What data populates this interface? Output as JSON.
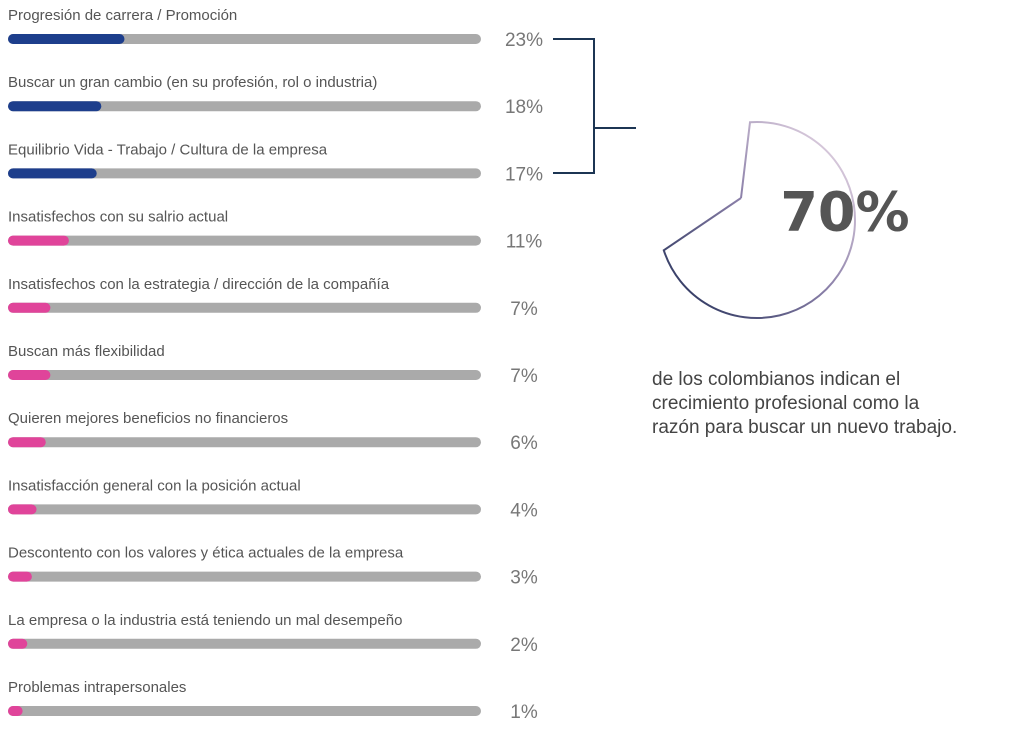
{
  "chart_data": [
    {
      "type": "bar",
      "categories": [
        "Progresión de carrera / Promoción",
        "Buscar un gran cambio (en su profesión, rol o industria)",
        "Equilibrio Vida - Trabajo  / Cultura de la empresa",
        "Insatisfechos con su salrio actual",
        "Insatisfechos con la estrategia / dirección de la compañía",
        "Buscan más flexibilidad",
        "Quieren mejores beneficios no financieros",
        "Insatisfacción general con la posición actual",
        "Descontento con los valores y ética actuales de la empresa",
        "La empresa o la industria está teniendo un mal desempeño",
        "Problemas intrapersonales"
      ],
      "values": [
        23,
        18,
        17,
        11,
        7,
        7,
        6,
        4,
        3,
        2,
        1
      ],
      "value_labels": [
        "23%",
        "18%",
        "17%",
        "11%",
        "7%",
        "7%",
        "6%",
        "4%",
        "3%",
        "2%",
        "1%"
      ],
      "colors": [
        "#1d3e8c",
        "#1d3e8c",
        "#1d3e8c",
        "#e0449a",
        "#e0449a",
        "#e0449a",
        "#e0449a",
        "#e0449a",
        "#e0449a",
        "#e0449a",
        "#e0449a"
      ],
      "track_color": "#aaaaaa",
      "xlim": [
        0,
        100
      ]
    },
    {
      "type": "pie",
      "values": [
        70
      ],
      "value_labels": [
        "70%"
      ],
      "caption": [
        "de los colombianos indican el",
        "crecimiento profesional como la",
        "razón para buscar un nuevo trabajo."
      ]
    }
  ]
}
